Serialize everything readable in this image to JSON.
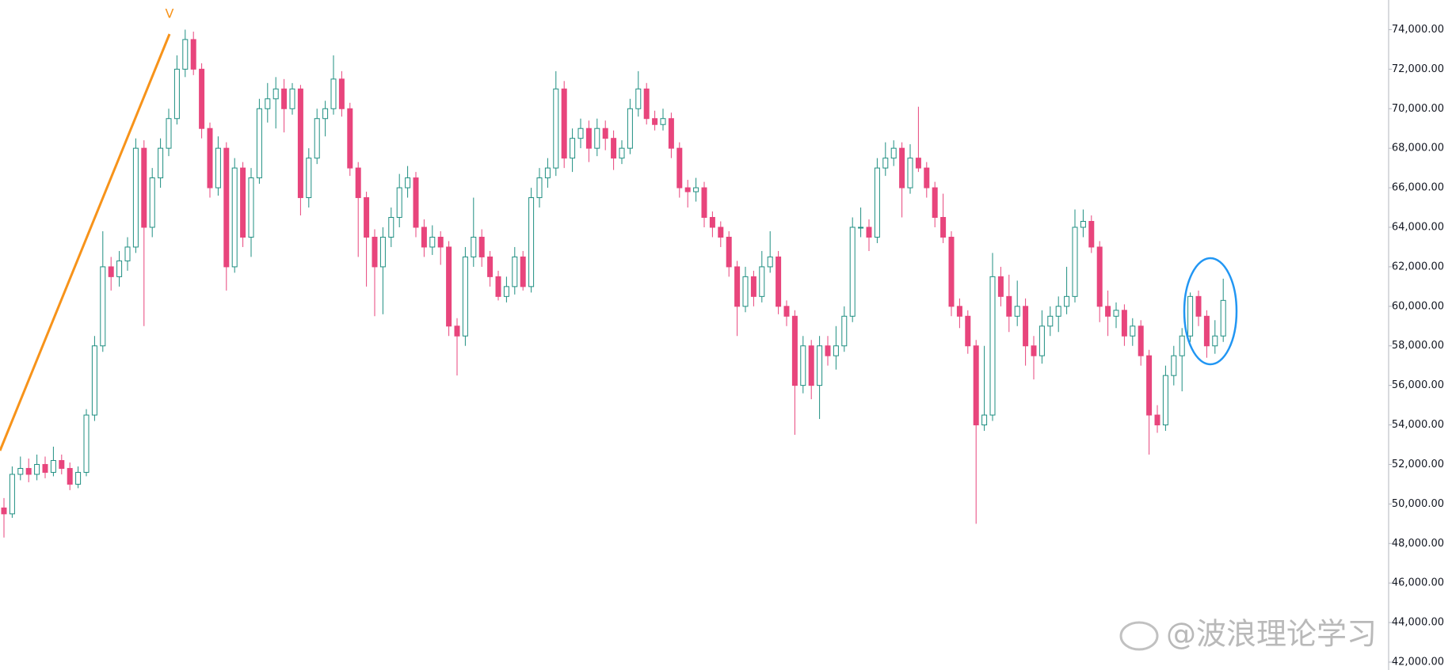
{
  "chart_data": {
    "type": "candlestick",
    "up_color": "#1f8f82",
    "down_color": "#e8457c",
    "ylim": [
      41600,
      75500
    ],
    "yticks": [
      {
        "value": 42000,
        "label": "42,000.00"
      },
      {
        "value": 44000,
        "label": "44,000.00"
      },
      {
        "value": 46000,
        "label": "46,000.00"
      },
      {
        "value": 48000,
        "label": "48,000.00"
      },
      {
        "value": 50000,
        "label": "50,000.00"
      },
      {
        "value": 52000,
        "label": "52,000.00"
      },
      {
        "value": 54000,
        "label": "54,000.00"
      },
      {
        "value": 56000,
        "label": "56,000.00"
      },
      {
        "value": 58000,
        "label": "58,000.00"
      },
      {
        "value": 60000,
        "label": "60,000.00"
      },
      {
        "value": 62000,
        "label": "62,000.00"
      },
      {
        "value": 64000,
        "label": "64,000.00"
      },
      {
        "value": 66000,
        "label": "66,000.00"
      },
      {
        "value": 68000,
        "label": "68,000.00"
      },
      {
        "value": 70000,
        "label": "70,000.00"
      },
      {
        "value": 72000,
        "label": "72,000.00"
      },
      {
        "value": 74000,
        "label": "74,000.00"
      }
    ],
    "annotation": "V",
    "watermark": "@波浪理论学习",
    "ohlc": [
      [
        49800,
        50300,
        48300,
        49500
      ],
      [
        49500,
        51900,
        49300,
        51500
      ],
      [
        51500,
        52400,
        51200,
        51800
      ],
      [
        51800,
        52300,
        51100,
        51500
      ],
      [
        51500,
        52500,
        51200,
        52000
      ],
      [
        52000,
        52400,
        51300,
        51600
      ],
      [
        51600,
        52900,
        51400,
        52200
      ],
      [
        52200,
        52500,
        51500,
        51800
      ],
      [
        51800,
        52100,
        50700,
        51000
      ],
      [
        51000,
        51900,
        50800,
        51600
      ],
      [
        51600,
        54800,
        51400,
        54500
      ],
      [
        54500,
        58500,
        54200,
        58000
      ],
      [
        58000,
        63800,
        57700,
        62000
      ],
      [
        62000,
        62500,
        60800,
        61500
      ],
      [
        61500,
        62800,
        61000,
        62300
      ],
      [
        62300,
        63500,
        61800,
        63000
      ],
      [
        63000,
        68500,
        62700,
        68000
      ],
      [
        68000,
        68400,
        59000,
        64000
      ],
      [
        64000,
        67000,
        63500,
        66500
      ],
      [
        66500,
        68500,
        66000,
        68000
      ],
      [
        68000,
        70000,
        67600,
        69500
      ],
      [
        69500,
        72700,
        69200,
        72000
      ],
      [
        72000,
        74000,
        71600,
        73500
      ],
      [
        73500,
        73900,
        71700,
        72000
      ],
      [
        72000,
        72300,
        68500,
        69000
      ],
      [
        69000,
        69300,
        65500,
        66000
      ],
      [
        66000,
        68600,
        65600,
        68000
      ],
      [
        68000,
        68300,
        60800,
        62000
      ],
      [
        62000,
        67500,
        61700,
        67000
      ],
      [
        67000,
        67300,
        63000,
        63500
      ],
      [
        63500,
        67000,
        62500,
        66500
      ],
      [
        66500,
        70500,
        66200,
        70000
      ],
      [
        70000,
        71300,
        69300,
        70500
      ],
      [
        70500,
        71600,
        69000,
        71000
      ],
      [
        71000,
        71500,
        68800,
        70000
      ],
      [
        70000,
        71300,
        69700,
        71000
      ],
      [
        71000,
        71200,
        64600,
        65500
      ],
      [
        65500,
        68000,
        65000,
        67500
      ],
      [
        67500,
        70000,
        67200,
        69500
      ],
      [
        69500,
        70400,
        68600,
        70000
      ],
      [
        70000,
        72700,
        69700,
        71500
      ],
      [
        71500,
        71900,
        69600,
        70000
      ],
      [
        70000,
        70300,
        66600,
        67000
      ],
      [
        67000,
        67300,
        62500,
        65500
      ],
      [
        65500,
        65800,
        61000,
        63500
      ],
      [
        63500,
        63900,
        59500,
        62000
      ],
      [
        62000,
        64000,
        59600,
        63500
      ],
      [
        63500,
        65000,
        63000,
        64500
      ],
      [
        64500,
        66700,
        64000,
        66000
      ],
      [
        66000,
        67100,
        65500,
        66500
      ],
      [
        66500,
        66800,
        63500,
        64000
      ],
      [
        64000,
        64400,
        62500,
        63000
      ],
      [
        63000,
        64100,
        62600,
        63500
      ],
      [
        63500,
        63800,
        62100,
        63000
      ],
      [
        63000,
        63300,
        58500,
        59000
      ],
      [
        59000,
        59400,
        56500,
        58500
      ],
      [
        58500,
        63000,
        58000,
        62500
      ],
      [
        62500,
        65500,
        62000,
        63500
      ],
      [
        63500,
        63900,
        62000,
        62500
      ],
      [
        62500,
        62800,
        61000,
        61500
      ],
      [
        61500,
        61800,
        60300,
        60500
      ],
      [
        60500,
        61500,
        60200,
        61000
      ],
      [
        61000,
        63000,
        60600,
        62500
      ],
      [
        62500,
        62800,
        60800,
        61000
      ],
      [
        61000,
        66000,
        60700,
        65500
      ],
      [
        65500,
        67000,
        65000,
        66500
      ],
      [
        66500,
        67500,
        66000,
        67000
      ],
      [
        67000,
        71900,
        66600,
        71000
      ],
      [
        71000,
        71400,
        67000,
        67500
      ],
      [
        67500,
        69000,
        66800,
        68500
      ],
      [
        68500,
        69500,
        68000,
        69000
      ],
      [
        69000,
        69400,
        67300,
        68000
      ],
      [
        68000,
        69500,
        67600,
        69000
      ],
      [
        69000,
        69400,
        67900,
        68500
      ],
      [
        68500,
        68900,
        66900,
        67500
      ],
      [
        67500,
        68400,
        67200,
        68000
      ],
      [
        68000,
        70500,
        67700,
        70000
      ],
      [
        70000,
        71900,
        69600,
        71000
      ],
      [
        71000,
        71300,
        69200,
        69500
      ],
      [
        69500,
        69900,
        68900,
        69200
      ],
      [
        69200,
        70000,
        68900,
        69500
      ],
      [
        69500,
        69800,
        67500,
        68000
      ],
      [
        68000,
        68300,
        65500,
        66000
      ],
      [
        66000,
        66400,
        65000,
        65800
      ],
      [
        65800,
        66500,
        65300,
        66000
      ],
      [
        66000,
        66300,
        64000,
        64500
      ],
      [
        64500,
        64800,
        63500,
        64000
      ],
      [
        64000,
        64300,
        63000,
        63500
      ],
      [
        63500,
        63800,
        61500,
        62000
      ],
      [
        62000,
        62300,
        58500,
        60000
      ],
      [
        60000,
        62000,
        59700,
        61500
      ],
      [
        61500,
        61800,
        60000,
        60500
      ],
      [
        60500,
        62800,
        60200,
        62000
      ],
      [
        62000,
        63800,
        61700,
        62500
      ],
      [
        62500,
        62800,
        59600,
        60000
      ],
      [
        60000,
        60300,
        59000,
        59500
      ],
      [
        59500,
        59800,
        53500,
        56000
      ],
      [
        56000,
        58500,
        55600,
        58000
      ],
      [
        58000,
        58300,
        55300,
        56000
      ],
      [
        56000,
        58500,
        54300,
        58000
      ],
      [
        58000,
        58500,
        57000,
        57500
      ],
      [
        57500,
        59000,
        56800,
        58000
      ],
      [
        58000,
        60000,
        57700,
        59500
      ],
      [
        59500,
        64500,
        59200,
        64000
      ],
      [
        64000,
        65000,
        63500,
        64000
      ],
      [
        64000,
        64400,
        62800,
        63500
      ],
      [
        63500,
        67500,
        63200,
        67000
      ],
      [
        67000,
        68300,
        66600,
        67500
      ],
      [
        67500,
        68400,
        67100,
        68000
      ],
      [
        68000,
        68300,
        64500,
        66000
      ],
      [
        66000,
        68200,
        65700,
        67500
      ],
      [
        67500,
        70100,
        66800,
        67000
      ],
      [
        67000,
        67300,
        65500,
        66000
      ],
      [
        66000,
        66300,
        64000,
        64500
      ],
      [
        64500,
        65700,
        63200,
        63500
      ],
      [
        63500,
        63800,
        59500,
        60000
      ],
      [
        60000,
        60400,
        58900,
        59500
      ],
      [
        59500,
        59800,
        57600,
        58000
      ],
      [
        58000,
        58300,
        49000,
        54000
      ],
      [
        54000,
        58000,
        53700,
        54500
      ],
      [
        54500,
        62700,
        54200,
        61500
      ],
      [
        61500,
        62000,
        60000,
        60500
      ],
      [
        60500,
        61600,
        58700,
        59500
      ],
      [
        59500,
        61300,
        59000,
        60000
      ],
      [
        60000,
        60400,
        57000,
        58000
      ],
      [
        58000,
        58500,
        56300,
        57500
      ],
      [
        57500,
        59800,
        57100,
        59000
      ],
      [
        59000,
        60000,
        58500,
        59500
      ],
      [
        59500,
        60500,
        58700,
        60000
      ],
      [
        60000,
        62000,
        59600,
        60500
      ],
      [
        60500,
        64900,
        60200,
        64000
      ],
      [
        64000,
        64900,
        63500,
        64300
      ],
      [
        64300,
        64600,
        62700,
        63000
      ],
      [
        63000,
        63300,
        59200,
        60000
      ],
      [
        60000,
        60800,
        58500,
        59500
      ],
      [
        59500,
        60200,
        58900,
        59800
      ],
      [
        59800,
        60100,
        58000,
        58500
      ],
      [
        58500,
        59400,
        58000,
        59000
      ],
      [
        59000,
        59300,
        57000,
        57500
      ],
      [
        57500,
        57800,
        52500,
        54500
      ],
      [
        54500,
        55000,
        53600,
        54000
      ],
      [
        54000,
        57000,
        53700,
        56500
      ],
      [
        56500,
        58000,
        56000,
        57500
      ],
      [
        57500,
        58900,
        55700,
        58500
      ],
      [
        58500,
        60700,
        58200,
        60500
      ],
      [
        60500,
        60800,
        59000,
        59500
      ],
      [
        59500,
        59800,
        57400,
        58000
      ],
      [
        58000,
        59300,
        57600,
        58500
      ],
      [
        58500,
        61400,
        58200,
        60300
      ]
    ]
  }
}
